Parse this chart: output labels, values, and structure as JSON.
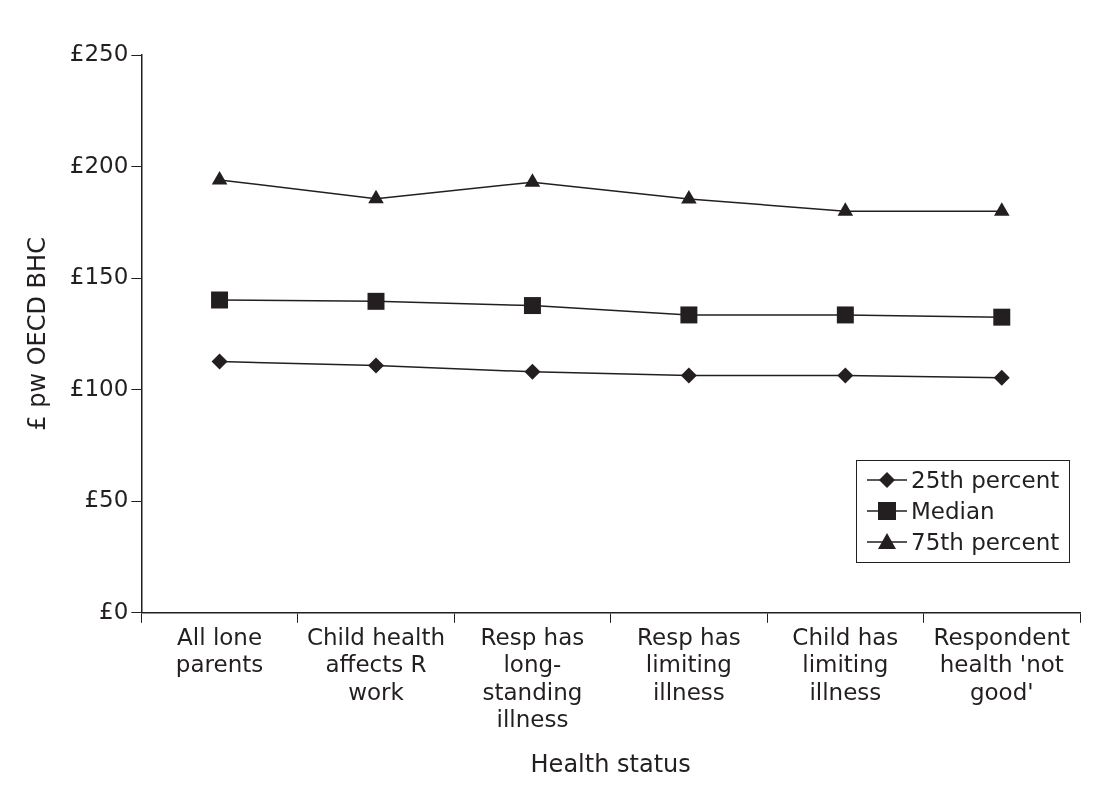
{
  "chart_data": {
    "type": "line",
    "xlabel": "Health status",
    "ylabel": "£ pw OECD BHC",
    "categories": [
      "All lone parents",
      "Child health affects R work",
      "Resp has long-standing illness",
      "Resp has limiting illness",
      "Child has limiting illness",
      "Respondent health 'not good'"
    ],
    "series": [
      {
        "name": "25th percent",
        "color": "#231f20",
        "marker": "diamond",
        "values": [
          112.6,
          110.8,
          108,
          106.3,
          106.3,
          105.4
        ]
      },
      {
        "name": "Median",
        "color": "#231f20",
        "marker": "square",
        "values": [
          140.2,
          139.6,
          137.7,
          133.5,
          133.5,
          132.5
        ]
      },
      {
        "name": "75th percent",
        "color": "#231f20",
        "marker": "triangle",
        "values": [
          194,
          185.6,
          193,
          185.5,
          180,
          180
        ]
      }
    ],
    "ylim": [
      0,
      250
    ],
    "yticks": [
      {
        "value": 0,
        "label": "£0"
      },
      {
        "value": 50,
        "label": "£50"
      },
      {
        "value": 100,
        "label": "£100"
      },
      {
        "value": 150,
        "label": "£150"
      },
      {
        "value": 200,
        "label": "£200"
      },
      {
        "value": 250,
        "label": "£250"
      }
    ],
    "grid": false,
    "legend": "bottom right",
    "line_style": "solid"
  }
}
